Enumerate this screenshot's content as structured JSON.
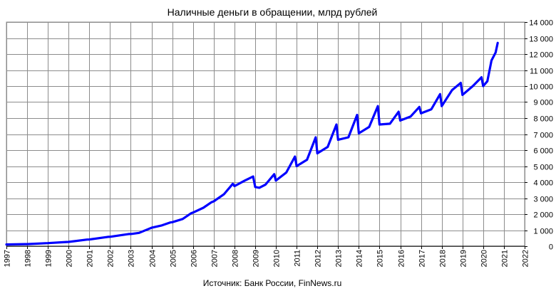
{
  "chart_data": {
    "type": "line",
    "title": "Наличные деньги в обращении, млрд рублей",
    "xlabel": "",
    "ylabel": "",
    "source": "Источник: Банк России, FinNews.ru",
    "xlim": [
      1997,
      2022
    ],
    "ylim": [
      0,
      14000
    ],
    "x_ticks": [
      1997,
      1998,
      1999,
      2000,
      2001,
      2002,
      2003,
      2004,
      2005,
      2006,
      2007,
      2008,
      2009,
      2010,
      2011,
      2012,
      2013,
      2014,
      2015,
      2016,
      2017,
      2018,
      2019,
      2020,
      2021,
      2022
    ],
    "y_ticks": [
      0,
      1000,
      2000,
      3000,
      4000,
      5000,
      6000,
      7000,
      8000,
      9000,
      10000,
      11000,
      12000,
      13000,
      14000
    ],
    "y_tick_labels": [
      "0",
      "1 000",
      "2 000",
      "3 000",
      "4 000",
      "5 000",
      "6 000",
      "7 000",
      "8 000",
      "9 000",
      "10 000",
      "11 000",
      "12 000",
      "13 000",
      "14 000"
    ],
    "grid": true,
    "y_axis_side": "right",
    "series": [
      {
        "color": "#0000ff",
        "points": [
          [
            1997.0,
            105
          ],
          [
            1997.9,
            130
          ],
          [
            1998.0,
            130
          ],
          [
            1998.9,
            185
          ],
          [
            1999.0,
            190
          ],
          [
            1999.9,
            260
          ],
          [
            2000.0,
            265
          ],
          [
            2000.9,
            415
          ],
          [
            2001.0,
            420
          ],
          [
            2001.9,
            580
          ],
          [
            2002.0,
            585
          ],
          [
            2002.9,
            760
          ],
          [
            2003.0,
            760
          ],
          [
            2003.4,
            830
          ],
          [
            2003.9,
            1100
          ],
          [
            2004.0,
            1150
          ],
          [
            2004.5,
            1300
          ],
          [
            2004.9,
            1480
          ],
          [
            2005.0,
            1500
          ],
          [
            2005.5,
            1700
          ],
          [
            2005.9,
            2050
          ],
          [
            2006.0,
            2100
          ],
          [
            2006.5,
            2400
          ],
          [
            2006.9,
            2750
          ],
          [
            2007.0,
            2800
          ],
          [
            2007.5,
            3250
          ],
          [
            2007.92,
            3900
          ],
          [
            2008.0,
            3750
          ],
          [
            2008.5,
            4100
          ],
          [
            2008.9,
            4350
          ],
          [
            2009.0,
            3700
          ],
          [
            2009.2,
            3650
          ],
          [
            2009.5,
            3850
          ],
          [
            2009.92,
            4500
          ],
          [
            2010.0,
            4100
          ],
          [
            2010.5,
            4600
          ],
          [
            2010.92,
            5600
          ],
          [
            2011.0,
            5000
          ],
          [
            2011.5,
            5400
          ],
          [
            2011.92,
            6800
          ],
          [
            2012.0,
            5800
          ],
          [
            2012.5,
            6200
          ],
          [
            2012.92,
            7600
          ],
          [
            2013.0,
            6650
          ],
          [
            2013.5,
            6800
          ],
          [
            2013.92,
            8200
          ],
          [
            2014.0,
            7050
          ],
          [
            2014.5,
            7450
          ],
          [
            2014.92,
            8750
          ],
          [
            2015.0,
            7600
          ],
          [
            2015.5,
            7650
          ],
          [
            2015.92,
            8400
          ],
          [
            2016.0,
            7850
          ],
          [
            2016.5,
            8100
          ],
          [
            2016.92,
            8700
          ],
          [
            2017.0,
            8300
          ],
          [
            2017.5,
            8550
          ],
          [
            2017.92,
            9500
          ],
          [
            2018.0,
            8750
          ],
          [
            2018.5,
            9750
          ],
          [
            2018.92,
            10200
          ],
          [
            2019.0,
            9450
          ],
          [
            2019.5,
            10000
          ],
          [
            2019.92,
            10550
          ],
          [
            2020.0,
            10000
          ],
          [
            2020.2,
            10300
          ],
          [
            2020.4,
            11600
          ],
          [
            2020.6,
            12100
          ],
          [
            2020.7,
            12700
          ]
        ]
      }
    ]
  }
}
